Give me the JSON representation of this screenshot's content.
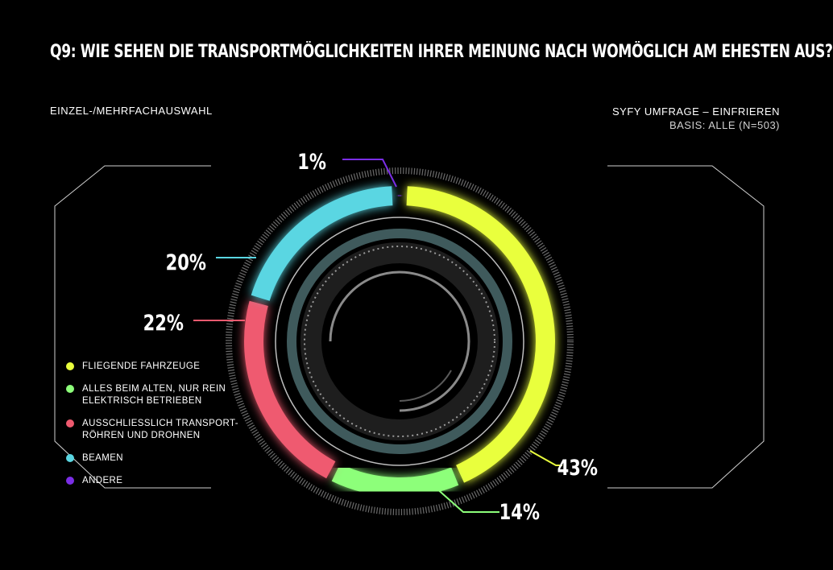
{
  "header": {
    "title": "Q9: Wie sehen die Transportmöglichkeiten Ihrer Meinung nach womöglich am ehesten aus?",
    "selection_type": "EINZEL-/MEHRFACHAUSWAHL",
    "source": "SYFY UMFRAGE – EINFRIEREN",
    "basis": "BASIS: ALLE (N=503)"
  },
  "chart_data": {
    "type": "pie",
    "variant": "donut",
    "categories": [
      "FLIEGENDE FAHRZEUGE",
      "ALLES BEIM ALTEN, NUR REIN ELEKTRISCH BETRIEBEN",
      "AUSSCHLIESSLICH TRANSPORT-RÖHREN UND DROHNEN",
      "BEAMEN",
      "ANDERE"
    ],
    "values": [
      43,
      14,
      22,
      20,
      1
    ],
    "labels": [
      "43%",
      "14%",
      "22%",
      "20%",
      "1%"
    ],
    "colors": [
      "#e9ff3d",
      "#8dff7a",
      "#ef5a6f",
      "#5ad6e2",
      "#7b2ee6"
    ],
    "legend_position": "left"
  }
}
